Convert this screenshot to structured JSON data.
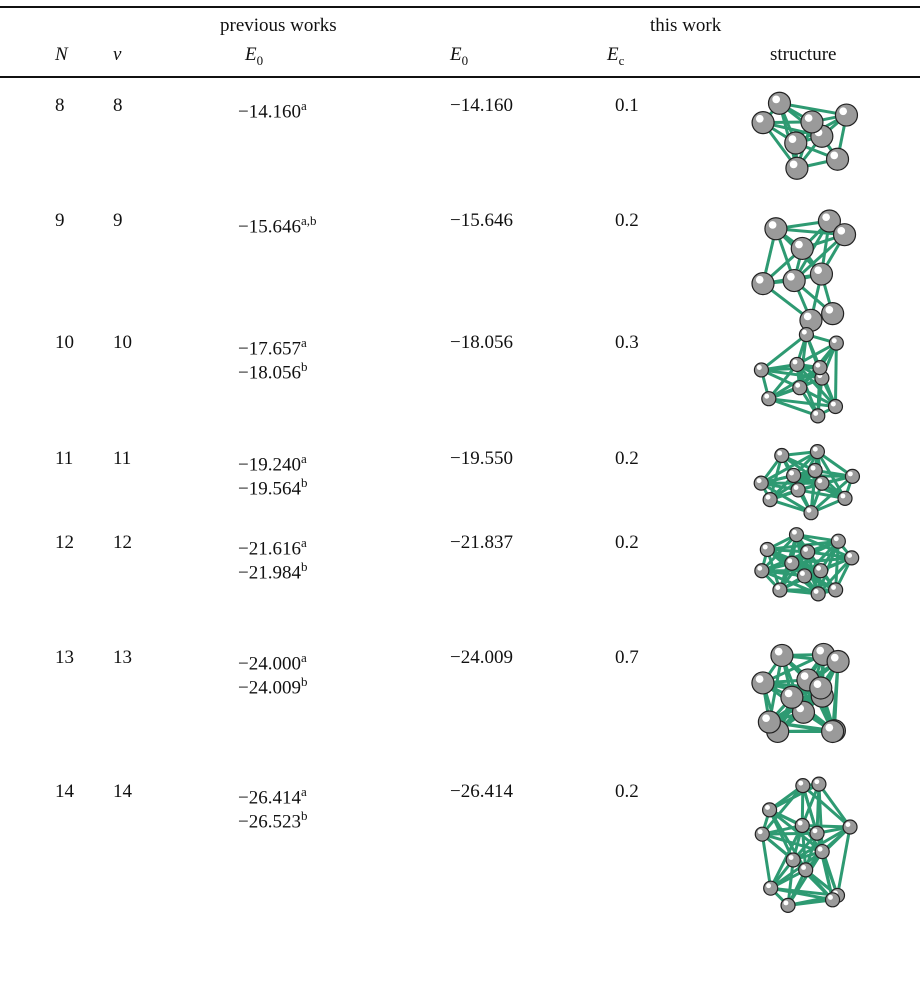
{
  "header": {
    "group_previous": "previous works",
    "group_this": "this work",
    "columns": [
      {
        "sym": "N"
      },
      {
        "sym": "ν"
      },
      {
        "sym": "E",
        "sub": "0"
      },
      {
        "sym": "E",
        "sub": "0"
      },
      {
        "sym": "E",
        "sub": "c"
      },
      {
        "text": "structure"
      }
    ]
  },
  "table": {
    "rows": [
      {
        "N": "8",
        "nu": "8",
        "previous": [
          {
            "value": "−14.160",
            "sup": "a"
          }
        ],
        "E0": "−14.160",
        "Ec": "0.1"
      },
      {
        "N": "9",
        "nu": "9",
        "previous": [
          {
            "value": "−15.646",
            "sup": "a,b"
          }
        ],
        "E0": "−15.646",
        "Ec": "0.2"
      },
      {
        "N": "10",
        "nu": "10",
        "previous": [
          {
            "value": "−17.657",
            "sup": "a"
          },
          {
            "value": "−18.056",
            "sup": "b"
          }
        ],
        "E0": "−18.056",
        "Ec": "0.3"
      },
      {
        "N": "11",
        "nu": "11",
        "previous": [
          {
            "value": "−19.240",
            "sup": "a"
          },
          {
            "value": "−19.564",
            "sup": "b"
          }
        ],
        "E0": "−19.550",
        "Ec": "0.2"
      },
      {
        "N": "12",
        "nu": "12",
        "previous": [
          {
            "value": "−21.616",
            "sup": "a"
          },
          {
            "value": "−21.984",
            "sup": "b"
          }
        ],
        "E0": "−21.837",
        "Ec": "0.2"
      },
      {
        "N": "13",
        "nu": "13",
        "previous": [
          {
            "value": "−24.000",
            "sup": "a"
          },
          {
            "value": "−24.009",
            "sup": "b"
          }
        ],
        "E0": "−24.009",
        "Ec": "0.7"
      },
      {
        "N": "14",
        "nu": "14",
        "previous": [
          {
            "value": "−26.414",
            "sup": "a"
          },
          {
            "value": "−26.523",
            "sup": "b"
          }
        ],
        "E0": "−26.414",
        "Ec": "0.2"
      }
    ]
  }
}
